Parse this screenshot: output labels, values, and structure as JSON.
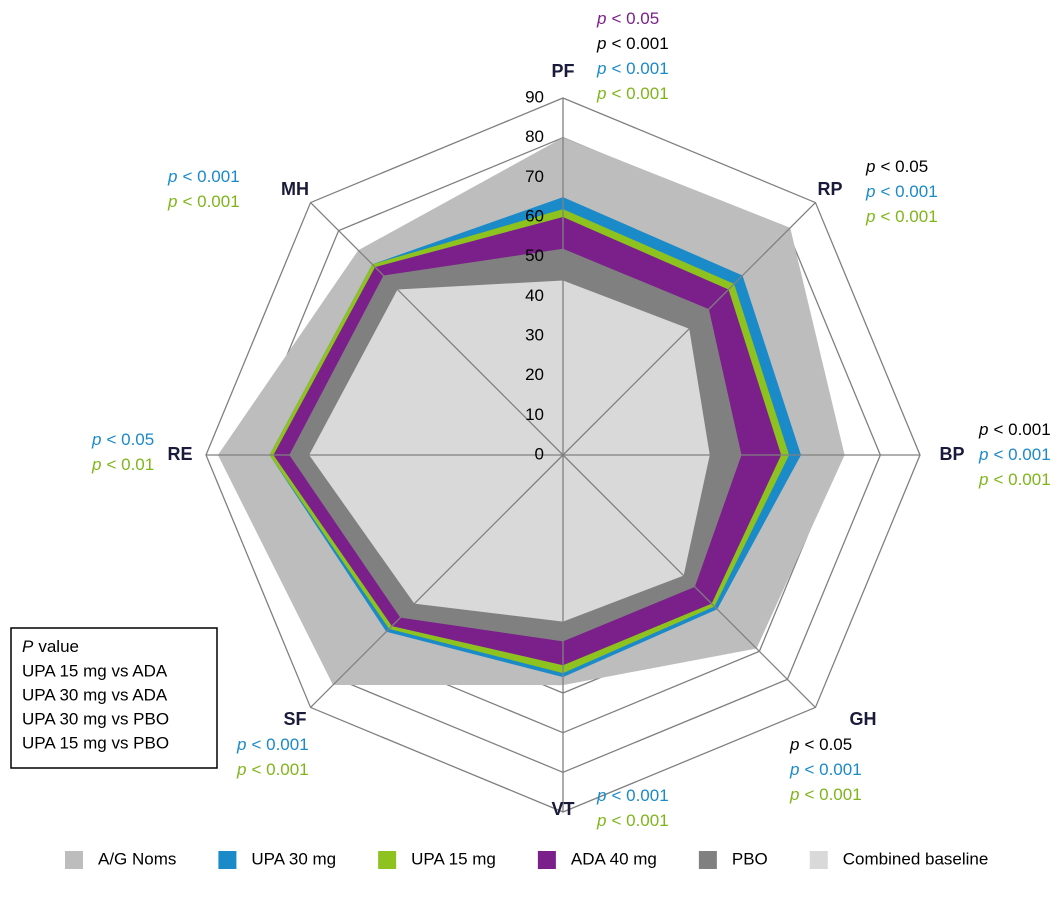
{
  "chart_data": {
    "type": "radar",
    "categories": [
      "PF",
      "RP",
      "BP",
      "GH",
      "VT",
      "SF",
      "RE",
      "MH"
    ],
    "ylim": [
      0,
      90
    ],
    "yticks": [
      0,
      10,
      20,
      30,
      40,
      50,
      60,
      70,
      80,
      90
    ],
    "series": [
      {
        "name": "A/G Noms",
        "color": "#bdbdbd",
        "values": [
          80,
          81,
          71,
          69,
          58,
          82,
          87,
          73
        ]
      },
      {
        "name": "UPA 30 mg",
        "color": "#1a8ac9",
        "values": [
          65,
          64,
          60,
          55,
          56,
          63,
          74,
          68
        ]
      },
      {
        "name": "UPA 15 mg",
        "color": "#8dc21f",
        "values": [
          62,
          61,
          57,
          54,
          55,
          62,
          74,
          68
        ]
      },
      {
        "name": "ADA 40 mg",
        "color": "#7b1f8a",
        "values": [
          60,
          59,
          55,
          53,
          53,
          61,
          73,
          67
        ]
      },
      {
        "name": "PBO",
        "color": "#808080",
        "values": [
          52,
          52,
          45,
          47,
          47,
          58,
          69,
          64
        ]
      },
      {
        "name": "Combined baseline",
        "color": "#d9d9d9",
        "values": [
          44,
          45,
          37,
          43,
          42,
          53,
          64,
          59
        ]
      }
    ],
    "annotations": [
      [
        {
          "symbol": "p",
          "text": "< 0.05",
          "color": "#7b1f8a"
        },
        {
          "symbol": "p",
          "text": "< 0.001",
          "color": "#000000"
        },
        {
          "symbol": "p",
          "text": "< 0.001",
          "color": "#1a8ac9"
        },
        {
          "symbol": "p",
          "text": "< 0.001",
          "color": "#7fb51a"
        }
      ],
      [
        {
          "symbol": "p",
          "text": "< 0.05",
          "color": "#000000"
        },
        {
          "symbol": "p",
          "text": "< 0.001",
          "color": "#1a8ac9"
        },
        {
          "symbol": "p",
          "text": "< 0.001",
          "color": "#7fb51a"
        }
      ],
      [
        {
          "symbol": "p",
          "text": "< 0.001",
          "color": "#000000"
        },
        {
          "symbol": "p",
          "text": "< 0.001",
          "color": "#1a8ac9"
        },
        {
          "symbol": "p",
          "text": "< 0.001",
          "color": "#7fb51a"
        }
      ],
      [
        {
          "symbol": "p",
          "text": "< 0.05",
          "color": "#000000"
        },
        {
          "symbol": "p",
          "text": "< 0.001",
          "color": "#1a8ac9"
        },
        {
          "symbol": "p",
          "text": "< 0.001",
          "color": "#7fb51a"
        }
      ],
      [
        {
          "symbol": "p",
          "text": "< 0.001",
          "color": "#1a8ac9"
        },
        {
          "symbol": "p",
          "text": "< 0.001",
          "color": "#7fb51a"
        }
      ],
      [
        {
          "symbol": "p",
          "text": "< 0.001",
          "color": "#1a8ac9"
        },
        {
          "symbol": "p",
          "text": "< 0.001",
          "color": "#7fb51a"
        }
      ],
      [
        {
          "symbol": "p",
          "text": "< 0.05",
          "color": "#1a8ac9"
        },
        {
          "symbol": "p",
          "text": "< 0.01",
          "color": "#7fb51a"
        }
      ],
      [
        {
          "symbol": "p",
          "text": "< 0.001",
          "color": "#1a8ac9"
        },
        {
          "symbol": "p",
          "text": "< 0.001",
          "color": "#7fb51a"
        }
      ]
    ],
    "pvalue_legend": {
      "title_symbol": "P",
      "title": "value",
      "entries": [
        {
          "text": "UPA 15 mg vs ADA",
          "color": "#7b1f8a"
        },
        {
          "text": "UPA 30 mg vs ADA",
          "color": "#000000"
        },
        {
          "text": "UPA 30 mg vs PBO",
          "color": "#1a8ac9"
        },
        {
          "text": "UPA 15 mg vs PBO",
          "color": "#7fb51a"
        }
      ]
    }
  }
}
